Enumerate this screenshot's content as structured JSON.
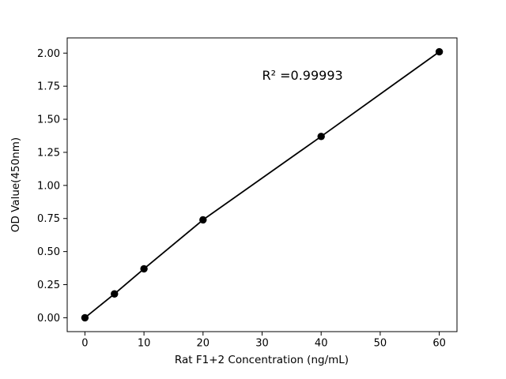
{
  "figure": {
    "background": "#ffffff",
    "foreground": "#000000"
  },
  "chart_data": {
    "type": "scatter",
    "title": "",
    "xlabel": "Rat F1+2 Concentration (ng/mL)",
    "ylabel": "OD Value(450nm)",
    "x": [
      0,
      5,
      10,
      20,
      40,
      60
    ],
    "y": [
      0.0,
      0.18,
      0.37,
      0.74,
      1.37,
      2.01
    ],
    "line": true,
    "line_color": "#000000",
    "marker_color": "#000000",
    "xticks": [
      0,
      10,
      20,
      30,
      40,
      50,
      60
    ],
    "yticks": [
      0.0,
      0.25,
      0.5,
      0.75,
      1.0,
      1.25,
      1.5,
      1.75,
      2.0
    ],
    "xlim": [
      -3,
      63
    ],
    "ylim": [
      -0.105,
      2.115
    ],
    "grid": false,
    "legend": null,
    "annotation": {
      "text": "R² =0.99993",
      "x": 30,
      "y": 1.8
    }
  }
}
